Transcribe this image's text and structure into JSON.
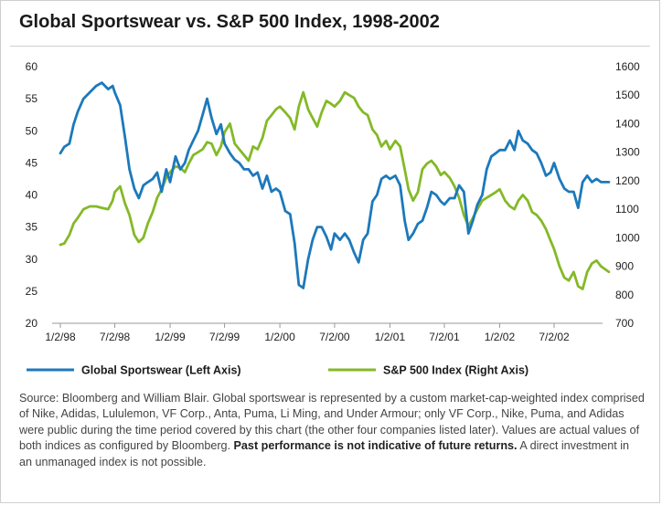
{
  "title": "Global Sportswear vs. S&P 500 Index, 1998-2002",
  "colors": {
    "sportswear": "#1c79bb",
    "sp500": "#84b928",
    "axis": "#999999"
  },
  "source": {
    "text_before": "Source: Bloomberg and William Blair. Global sportswear is represented by a custom market-cap-weighted index comprised of Nike, Adidas, Lululemon, VF Corp., Anta, Puma, Li Ming, and Under Armour; only VF Corp., Nike, Puma, and Adidas were public during the time period covered by this chart (the other four companies listed later). Values are actual values of both indices as configured by Bloomberg.",
    "bold": "Past performance is not indicative of future returns.",
    "text_after": "A direct investment in an unmanaged index is not possible."
  },
  "chart_data": {
    "type": "line",
    "title": "Global Sportswear vs. S&P 500 Index, 1998-2002",
    "x_tick_labels": [
      "1/2/98",
      "7/2/98",
      "1/2/99",
      "7/2/99",
      "1/2/00",
      "7/2/00",
      "1/2/01",
      "7/2/01",
      "1/2/02",
      "7/2/02"
    ],
    "x_range": [
      "1998-01-02",
      "2002-12-31"
    ],
    "y_left": {
      "ticks": [
        "20",
        "25",
        "30",
        "35",
        "40",
        "45",
        "50",
        "55",
        "60"
      ],
      "ylim": [
        20,
        60
      ]
    },
    "y_right": {
      "ticks": [
        "700",
        "800",
        "900",
        "1000",
        "1100",
        "1200",
        "1300",
        "1400",
        "1500",
        "1600"
      ],
      "ylim": [
        700,
        1600
      ]
    },
    "legend_position": "bottom",
    "grid": false,
    "series": [
      {
        "name": "Global Sportswear (Left Axis)",
        "axis": "left",
        "color": "#1c79bb",
        "x": [
          "1998-01-02",
          "1998-01-15",
          "1998-02-01",
          "1998-02-15",
          "1998-03-01",
          "1998-03-20",
          "1998-04-10",
          "1998-05-01",
          "1998-05-20",
          "1998-06-10",
          "1998-06-25",
          "1998-07-02",
          "1998-07-20",
          "1998-08-05",
          "1998-08-20",
          "1998-09-05",
          "1998-09-20",
          "1998-10-05",
          "1998-10-20",
          "1998-11-05",
          "1998-11-20",
          "1998-12-05",
          "1998-12-20",
          "1999-01-02",
          "1999-01-20",
          "1999-02-05",
          "1999-02-20",
          "1999-03-05",
          "1999-03-20",
          "1999-04-05",
          "1999-04-20",
          "1999-05-05",
          "1999-05-20",
          "1999-06-05",
          "1999-06-20",
          "1999-07-02",
          "1999-07-20",
          "1999-08-05",
          "1999-08-20",
          "1999-09-05",
          "1999-09-20",
          "1999-10-05",
          "1999-10-20",
          "1999-11-05",
          "1999-11-20",
          "1999-12-05",
          "1999-12-20",
          "2000-01-02",
          "2000-01-20",
          "2000-02-05",
          "2000-02-20",
          "2000-03-05",
          "2000-03-20",
          "2000-04-05",
          "2000-04-20",
          "2000-05-05",
          "2000-05-20",
          "2000-06-05",
          "2000-06-20",
          "2000-07-02",
          "2000-07-20",
          "2000-08-05",
          "2000-08-20",
          "2000-09-05",
          "2000-09-20",
          "2000-10-05",
          "2000-10-20",
          "2000-11-05",
          "2000-11-20",
          "2000-12-05",
          "2000-12-20",
          "2001-01-02",
          "2001-01-20",
          "2001-02-05",
          "2001-02-20",
          "2001-03-05",
          "2001-03-20",
          "2001-04-05",
          "2001-04-20",
          "2001-05-05",
          "2001-05-20",
          "2001-06-05",
          "2001-06-20",
          "2001-07-02",
          "2001-07-20",
          "2001-08-05",
          "2001-08-20",
          "2001-09-05",
          "2001-09-20",
          "2001-10-05",
          "2001-10-20",
          "2001-11-05",
          "2001-11-20",
          "2001-12-05",
          "2001-12-20",
          "2002-01-02",
          "2002-01-20",
          "2002-02-05",
          "2002-02-20",
          "2002-03-05",
          "2002-03-20",
          "2002-04-05",
          "2002-04-20",
          "2002-05-05",
          "2002-05-20",
          "2002-06-05",
          "2002-06-20",
          "2002-07-02",
          "2002-07-20",
          "2002-08-05",
          "2002-08-20",
          "2002-09-05",
          "2002-09-20",
          "2002-10-05",
          "2002-10-20",
          "2002-11-05",
          "2002-11-20",
          "2002-12-05",
          "2002-12-31"
        ],
        "values": [
          46.5,
          47.5,
          48.0,
          51.0,
          53.0,
          55.0,
          56.0,
          57.0,
          57.5,
          56.5,
          57.0,
          56.0,
          54.0,
          49.0,
          44.0,
          41.0,
          39.5,
          41.5,
          42.0,
          42.5,
          43.5,
          40.5,
          44.0,
          42.0,
          46.0,
          44.0,
          45.0,
          47.0,
          48.5,
          50.0,
          52.5,
          55.0,
          52.0,
          49.5,
          51.0,
          48.0,
          46.5,
          45.5,
          45.0,
          44.0,
          44.0,
          43.0,
          43.5,
          41.0,
          43.0,
          40.5,
          41.0,
          40.5,
          37.5,
          37.0,
          32.5,
          26.0,
          25.5,
          30.0,
          33.0,
          35.0,
          35.0,
          33.5,
          31.5,
          34.0,
          33.0,
          34.0,
          33.0,
          31.0,
          29.5,
          33.0,
          34.0,
          39.0,
          40.0,
          42.5,
          43.0,
          42.5,
          43.0,
          41.5,
          36.0,
          33.0,
          34.0,
          35.5,
          36.0,
          38.0,
          40.5,
          40.0,
          39.0,
          38.5,
          39.5,
          39.5,
          41.5,
          40.5,
          34.0,
          36.0,
          38.5,
          40.0,
          44.0,
          46.0,
          46.5,
          47.0,
          47.0,
          48.5,
          47.0,
          50.0,
          48.5,
          48.0,
          47.0,
          46.5,
          45.0,
          43.0,
          43.5,
          45.0,
          42.5,
          41.0,
          40.5,
          40.5,
          38.0,
          42.0,
          43.0,
          42.0,
          42.5,
          42.0,
          42.0
        ]
      },
      {
        "name": "S&P 500 Index (Right Axis)",
        "axis": "right",
        "color": "#84b928",
        "x": [
          "1998-01-02",
          "1998-01-15",
          "1998-02-01",
          "1998-02-15",
          "1998-03-01",
          "1998-03-20",
          "1998-04-10",
          "1998-05-01",
          "1998-05-20",
          "1998-06-10",
          "1998-06-25",
          "1998-07-02",
          "1998-07-20",
          "1998-08-05",
          "1998-08-20",
          "1998-09-05",
          "1998-09-20",
          "1998-10-05",
          "1998-10-20",
          "1998-11-05",
          "1998-11-20",
          "1998-12-05",
          "1998-12-20",
          "1999-01-02",
          "1999-01-20",
          "1999-02-05",
          "1999-02-20",
          "1999-03-05",
          "1999-03-20",
          "1999-04-05",
          "1999-04-20",
          "1999-05-05",
          "1999-05-20",
          "1999-06-05",
          "1999-06-20",
          "1999-07-02",
          "1999-07-20",
          "1999-08-05",
          "1999-08-20",
          "1999-09-05",
          "1999-09-20",
          "1999-10-05",
          "1999-10-20",
          "1999-11-05",
          "1999-11-20",
          "1999-12-05",
          "1999-12-20",
          "2000-01-02",
          "2000-01-20",
          "2000-02-05",
          "2000-02-20",
          "2000-03-05",
          "2000-03-20",
          "2000-04-05",
          "2000-04-20",
          "2000-05-05",
          "2000-05-20",
          "2000-06-05",
          "2000-06-20",
          "2000-07-02",
          "2000-07-20",
          "2000-08-05",
          "2000-08-20",
          "2000-09-05",
          "2000-09-20",
          "2000-10-05",
          "2000-10-20",
          "2000-11-05",
          "2000-11-20",
          "2000-12-05",
          "2000-12-20",
          "2001-01-02",
          "2001-01-20",
          "2001-02-05",
          "2001-02-20",
          "2001-03-05",
          "2001-03-20",
          "2001-04-05",
          "2001-04-20",
          "2001-05-05",
          "2001-05-20",
          "2001-06-05",
          "2001-06-20",
          "2001-07-02",
          "2001-07-20",
          "2001-08-05",
          "2001-08-20",
          "2001-09-05",
          "2001-09-20",
          "2001-10-05",
          "2001-10-20",
          "2001-11-05",
          "2001-11-20",
          "2001-12-05",
          "2001-12-20",
          "2002-01-02",
          "2002-01-20",
          "2002-02-05",
          "2002-02-20",
          "2002-03-05",
          "2002-03-20",
          "2002-04-05",
          "2002-04-20",
          "2002-05-05",
          "2002-05-20",
          "2002-06-05",
          "2002-06-20",
          "2002-07-02",
          "2002-07-20",
          "2002-08-05",
          "2002-08-20",
          "2002-09-05",
          "2002-09-20",
          "2002-10-05",
          "2002-10-20",
          "2002-11-05",
          "2002-11-20",
          "2002-12-05",
          "2002-12-31"
        ],
        "values": [
          975,
          980,
          1010,
          1050,
          1070,
          1100,
          1110,
          1110,
          1105,
          1100,
          1130,
          1160,
          1180,
          1120,
          1080,
          1010,
          985,
          1000,
          1050,
          1090,
          1140,
          1170,
          1210,
          1230,
          1250,
          1245,
          1230,
          1260,
          1290,
          1300,
          1310,
          1335,
          1330,
          1290,
          1320,
          1370,
          1400,
          1330,
          1310,
          1290,
          1270,
          1320,
          1310,
          1350,
          1410,
          1430,
          1450,
          1460,
          1440,
          1420,
          1380,
          1460,
          1510,
          1450,
          1420,
          1390,
          1440,
          1480,
          1470,
          1460,
          1480,
          1510,
          1500,
          1490,
          1460,
          1440,
          1430,
          1380,
          1360,
          1320,
          1340,
          1310,
          1340,
          1320,
          1240,
          1170,
          1130,
          1160,
          1240,
          1260,
          1270,
          1250,
          1220,
          1230,
          1210,
          1180,
          1140,
          1080,
          1040,
          1070,
          1100,
          1130,
          1140,
          1150,
          1160,
          1170,
          1130,
          1110,
          1100,
          1130,
          1150,
          1130,
          1090,
          1080,
          1060,
          1030,
          990,
          960,
          900,
          860,
          850,
          880,
          830,
          820,
          880,
          910,
          920,
          900,
          880
        ]
      }
    ]
  }
}
